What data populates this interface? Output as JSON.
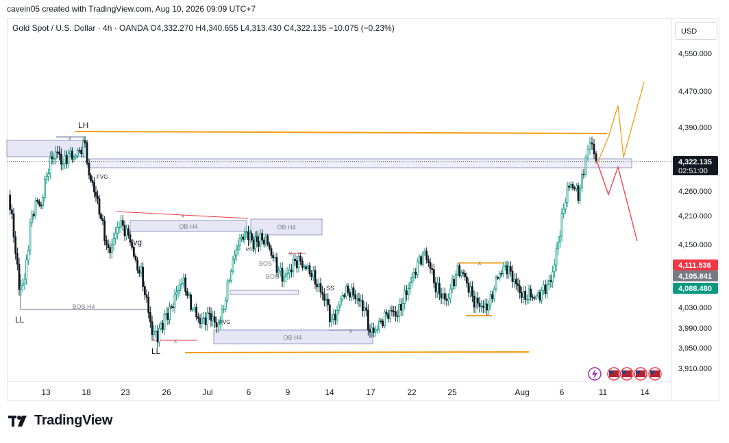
{
  "header": {
    "created_by": "cavein05 created with TradingView.com, Aug 10, 2026 09:09 UTC+7",
    "symbol_line": "Gold Spot / U.S. Dollar · 4h · OANDA  O4,332.270  H4,340.655  L4,313.430  C4,322.135  −10.075 (−0.23%)"
  },
  "currency_button": "USD",
  "brand": "TradingView",
  "chart_data": {
    "type": "candlestick",
    "symbol": "Gold Spot / U.S. Dollar",
    "interval": "4h",
    "exchange": "OANDA",
    "ohlc_last": {
      "open": 4332.27,
      "high": 4340.655,
      "low": 4313.43,
      "close": 4322.135,
      "change": -10.075,
      "change_pct": -0.23
    },
    "y_ticks": [
      "4,550.000",
      "4,470.000",
      "4,390.000",
      "4,260.000",
      "4,210.000",
      "4,150.000",
      "4,030.000",
      "3,990.000",
      "3,950.000",
      "3,910.000"
    ],
    "y_tick_values": [
      4550,
      4470,
      4390,
      4260,
      4210,
      4150,
      4030,
      3990,
      3950,
      3910
    ],
    "x_ticks": [
      "13",
      "18",
      "23",
      "26",
      "Jul",
      "6",
      "9",
      "14",
      "17",
      "22",
      "25",
      "Aug",
      "6",
      "11",
      "14"
    ],
    "price_labels": [
      {
        "text": "4,322.135",
        "sub": "02:51:00",
        "price": 4322.135,
        "color": "#131722"
      },
      {
        "text": "4,111.536",
        "price": 4111.536,
        "color": "#f23645"
      },
      {
        "text": "4,105.841",
        "price": 4105.841,
        "color": "#787b86"
      },
      {
        "text": "4,088.480",
        "price": 4088.48,
        "color": "#089981"
      }
    ],
    "annotations": [
      "LH",
      "LL",
      "LL",
      "FVG",
      "fvg",
      "OB H4",
      "OB H4",
      "BOS H4",
      "OB H4",
      "FVG",
      "MSS",
      "BOS",
      "BOS",
      "SS",
      "x"
    ],
    "colors": {
      "up": "#089981",
      "down": "#131722",
      "zone": "#b2b5d6",
      "orange": "#f39c12",
      "red": "#f23645"
    }
  }
}
